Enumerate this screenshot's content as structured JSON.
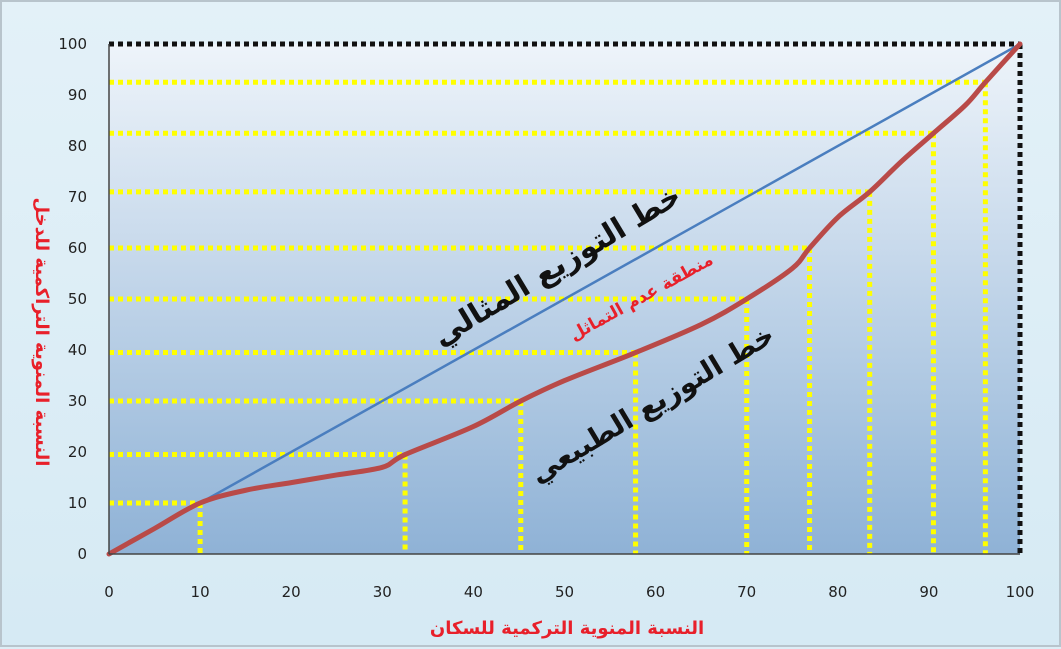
{
  "chart_data": {
    "type": "line",
    "title": "",
    "xlabel": "النسبة المنوية التركمية للسكان",
    "ylabel": "النسبة المنوية التراكمية للدخل",
    "xlim": [
      0,
      100
    ],
    "ylim": [
      0,
      100
    ],
    "x_ticks": [
      0,
      10,
      20,
      30,
      40,
      50,
      60,
      70,
      80,
      90,
      100
    ],
    "y_ticks": [
      0,
      10,
      20,
      30,
      40,
      50,
      60,
      70,
      80,
      90,
      100
    ],
    "grid": false,
    "legend": "none",
    "series": [
      {
        "color": "#4a7ebf",
        "x": [
          0,
          100
        ],
        "y": [
          0,
          100
        ]
      },
      {
        "color": "#b94a48",
        "x": [
          0,
          5,
          10,
          15,
          20,
          25,
          30,
          32.5,
          40,
          45.2,
          50,
          57.8,
          65,
          70,
          75,
          76.9,
          80,
          83.5,
          87,
          90.5,
          94,
          96.2,
          100
        ],
        "y": [
          0,
          5,
          10,
          12.5,
          14,
          15.5,
          17,
          19.5,
          25,
          30,
          34,
          39.5,
          45,
          50,
          56,
          60,
          66,
          71,
          77,
          82.5,
          88,
          92.5,
          100
        ]
      }
    ],
    "guide_points": [
      {
        "x": 10,
        "y": 10
      },
      {
        "x": 32.5,
        "y": 19.5
      },
      {
        "x": 45.2,
        "y": 30
      },
      {
        "x": 57.8,
        "y": 39.5
      },
      {
        "x": 70,
        "y": 50
      },
      {
        "x": 76.9,
        "y": 60
      },
      {
        "x": 83.5,
        "y": 71
      },
      {
        "x": 90.5,
        "y": 82.5
      },
      {
        "x": 96.2,
        "y": 92.5
      },
      {
        "x": 100,
        "y": 100
      }
    ],
    "guide_color": "#ffff00",
    "annotations": {
      "ideal_line": "خط التوزيع المثالي",
      "inequality_area": "منطقة عدم التماثل",
      "natural_line": "خط التوزيع الطبيعي"
    }
  }
}
